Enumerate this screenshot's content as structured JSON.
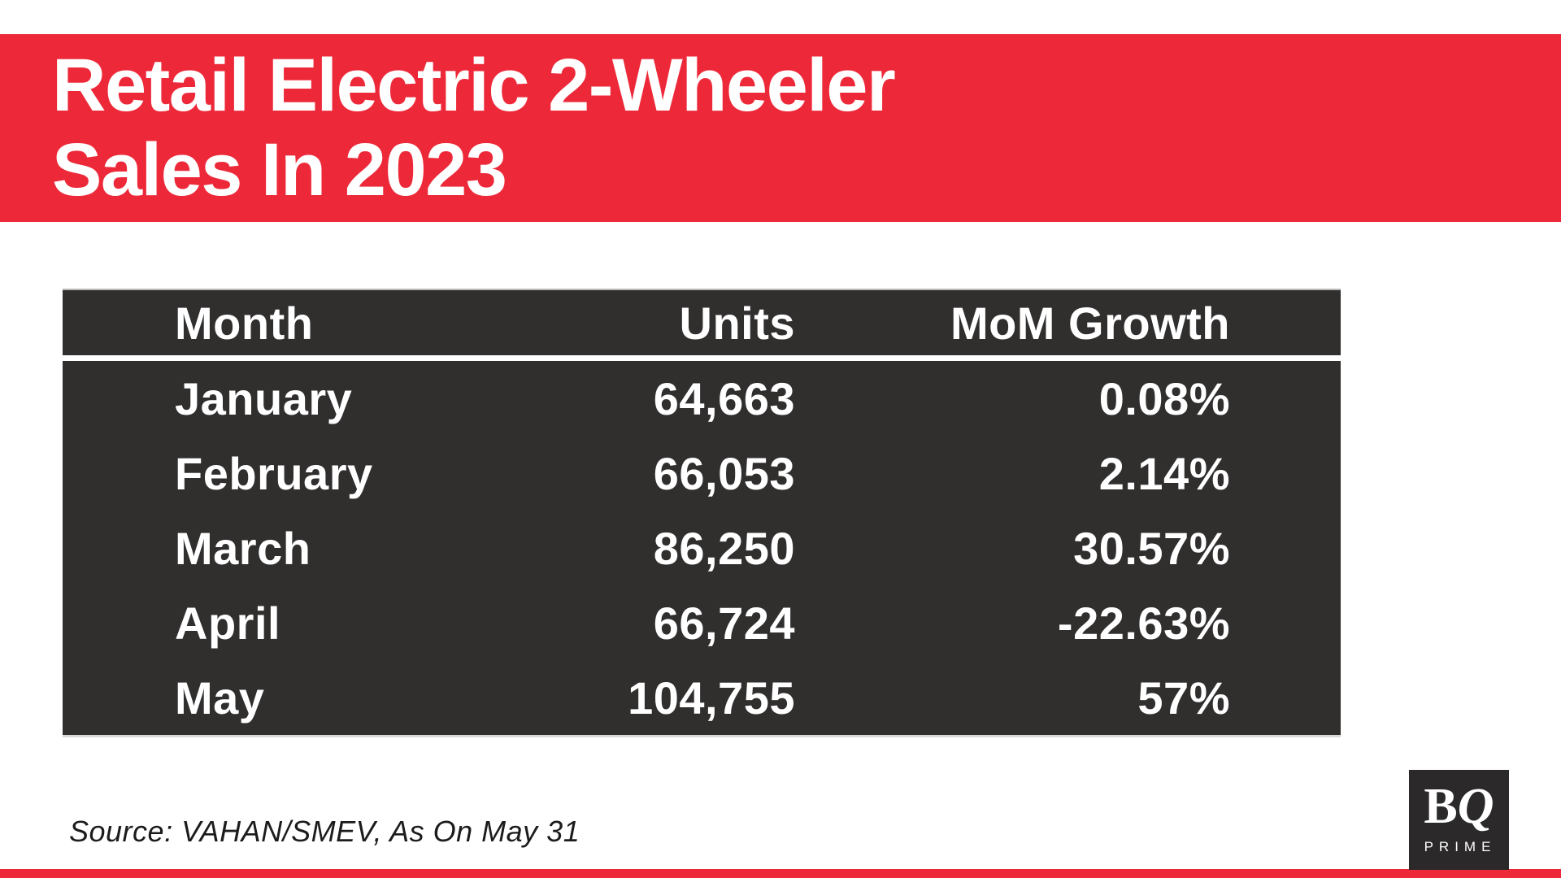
{
  "title": {
    "line1": "Retail Electric 2-Wheeler",
    "line2": "Sales In 2023"
  },
  "table": {
    "headers": {
      "month": "Month",
      "units": "Units",
      "growth": "MoM Growth"
    },
    "rows": [
      {
        "month": "January",
        "units": "64,663",
        "growth": "0.08%"
      },
      {
        "month": "February",
        "units": "66,053",
        "growth": "2.14%"
      },
      {
        "month": "March",
        "units": "86,250",
        "growth": "30.57%"
      },
      {
        "month": "April",
        "units": "66,724",
        "growth": "-22.63%"
      },
      {
        "month": "May",
        "units": "104,755",
        "growth": "57%"
      }
    ]
  },
  "source": {
    "text": "Source: VAHAN/SMEV, As On May 31"
  },
  "logo": {
    "b": "B",
    "q": "Q",
    "prime": "PRIME"
  },
  "colors": {
    "accent_red": "#ED2939",
    "panel_dark": "#312E2E",
    "logo_dark": "#2B2929",
    "text_white": "#FFFFFF",
    "source_text": "#1C1C1C"
  },
  "chart_data": {
    "type": "table",
    "title": "Retail Electric 2-Wheeler Sales In 2023",
    "columns": [
      "Month",
      "Units",
      "MoM Growth"
    ],
    "rows": [
      [
        "January",
        64663,
        "0.08%"
      ],
      [
        "February",
        66053,
        "2.14%"
      ],
      [
        "March",
        86250,
        "30.57%"
      ],
      [
        "April",
        66724,
        "-22.63%"
      ],
      [
        "May",
        104755,
        "57%"
      ]
    ],
    "units_mom_growth_pct": [
      0.08,
      2.14,
      30.57,
      -22.63,
      57
    ],
    "source": "Source: VAHAN/SMEV, As On May 31"
  }
}
